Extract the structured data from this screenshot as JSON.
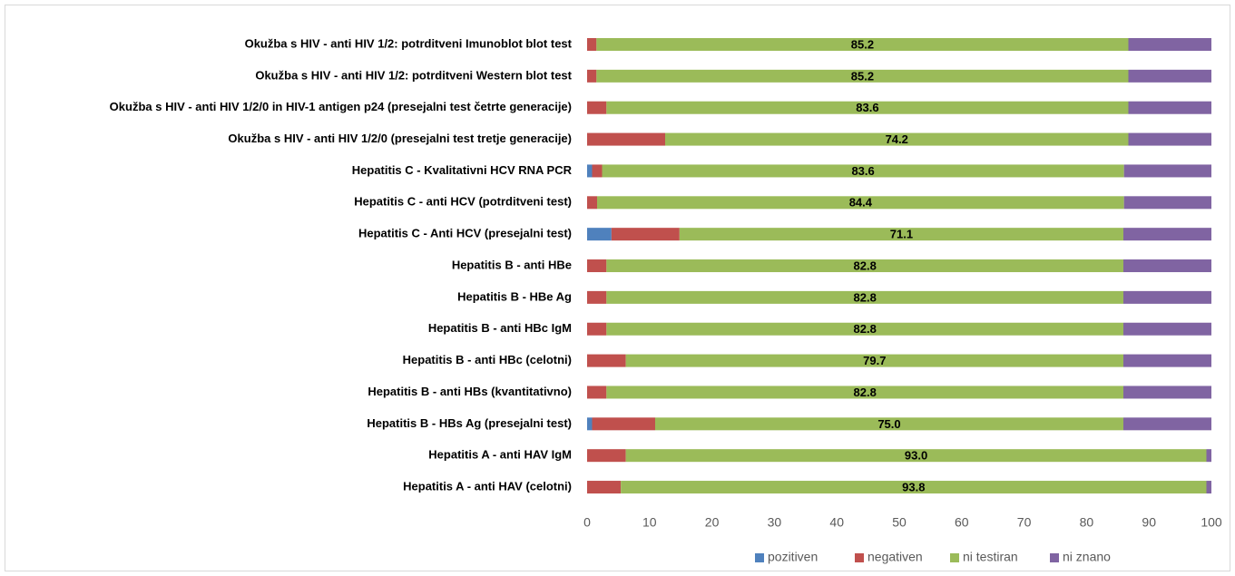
{
  "chart_data": {
    "type": "stacked_barh",
    "categories": [
      "Okužba s HIV - anti HIV 1/2: potrditveni Imunoblot blot test",
      "Okužba s HIV - anti HIV 1/2: potrditveni Western blot test",
      "Okužba s HIV - anti HIV 1/2/0 in HIV-1 antigen p24 (presejalni test četrte generacije)",
      "Okužba s HIV - anti HIV 1/2/0 (presejalni test tretje generacije)",
      "Hepatitis C - Kvalitativni HCV RNA PCR",
      "Hepatitis C - anti HCV (potrditveni test)",
      "Hepatitis C - Anti HCV (presejalni test)",
      "Hepatitis B - anti HBe",
      "Hepatitis B - HBe Ag",
      "Hepatitis B - anti HBc IgM",
      "Hepatitis B - anti HBc (celotni)",
      "Hepatitis B - anti HBs (kvantitativno)",
      "Hepatitis B - HBs Ag (presejalni test)",
      "Hepatitis A - anti HAV IgM",
      "Hepatitis A - anti HAV (celotni)"
    ],
    "series": [
      {
        "name": "pozitiven",
        "color": "#4f81bd",
        "values": [
          0,
          0,
          0,
          0,
          0.8,
          0,
          3.9,
          0,
          0,
          0,
          0,
          0,
          0.8,
          0,
          0
        ]
      },
      {
        "name": "negativen",
        "color": "#c0504d",
        "values": [
          1.5,
          1.5,
          3.1,
          12.5,
          1.6,
          1.6,
          10.9,
          3.1,
          3.1,
          3.1,
          6.2,
          3.1,
          10.1,
          6.2,
          5.4
        ]
      },
      {
        "name": "ni testiran",
        "color": "#9bbb59",
        "values": [
          85.2,
          85.2,
          83.6,
          74.2,
          83.6,
          84.4,
          71.1,
          82.8,
          82.8,
          82.8,
          79.7,
          82.8,
          75.0,
          93.0,
          93.8
        ],
        "value_labels": [
          "85.2",
          "85.2",
          "83.6",
          "74.2",
          "83.6",
          "84.4",
          "71.1",
          "82.8",
          "82.8",
          "82.8",
          "79.7",
          "82.8",
          "75.0",
          "93.0",
          "93.8"
        ]
      },
      {
        "name": "ni znano",
        "color": "#8064a2",
        "values": [
          13.3,
          13.3,
          13.3,
          13.3,
          14.0,
          14.0,
          14.1,
          14.1,
          14.1,
          14.1,
          14.1,
          14.1,
          14.1,
          0.8,
          0.8
        ]
      }
    ],
    "xlim": [
      0,
      100
    ],
    "xticks": [
      0,
      10,
      20,
      30,
      40,
      50,
      60,
      70,
      80,
      90,
      100
    ],
    "legend": "bottom",
    "grid": false
  }
}
